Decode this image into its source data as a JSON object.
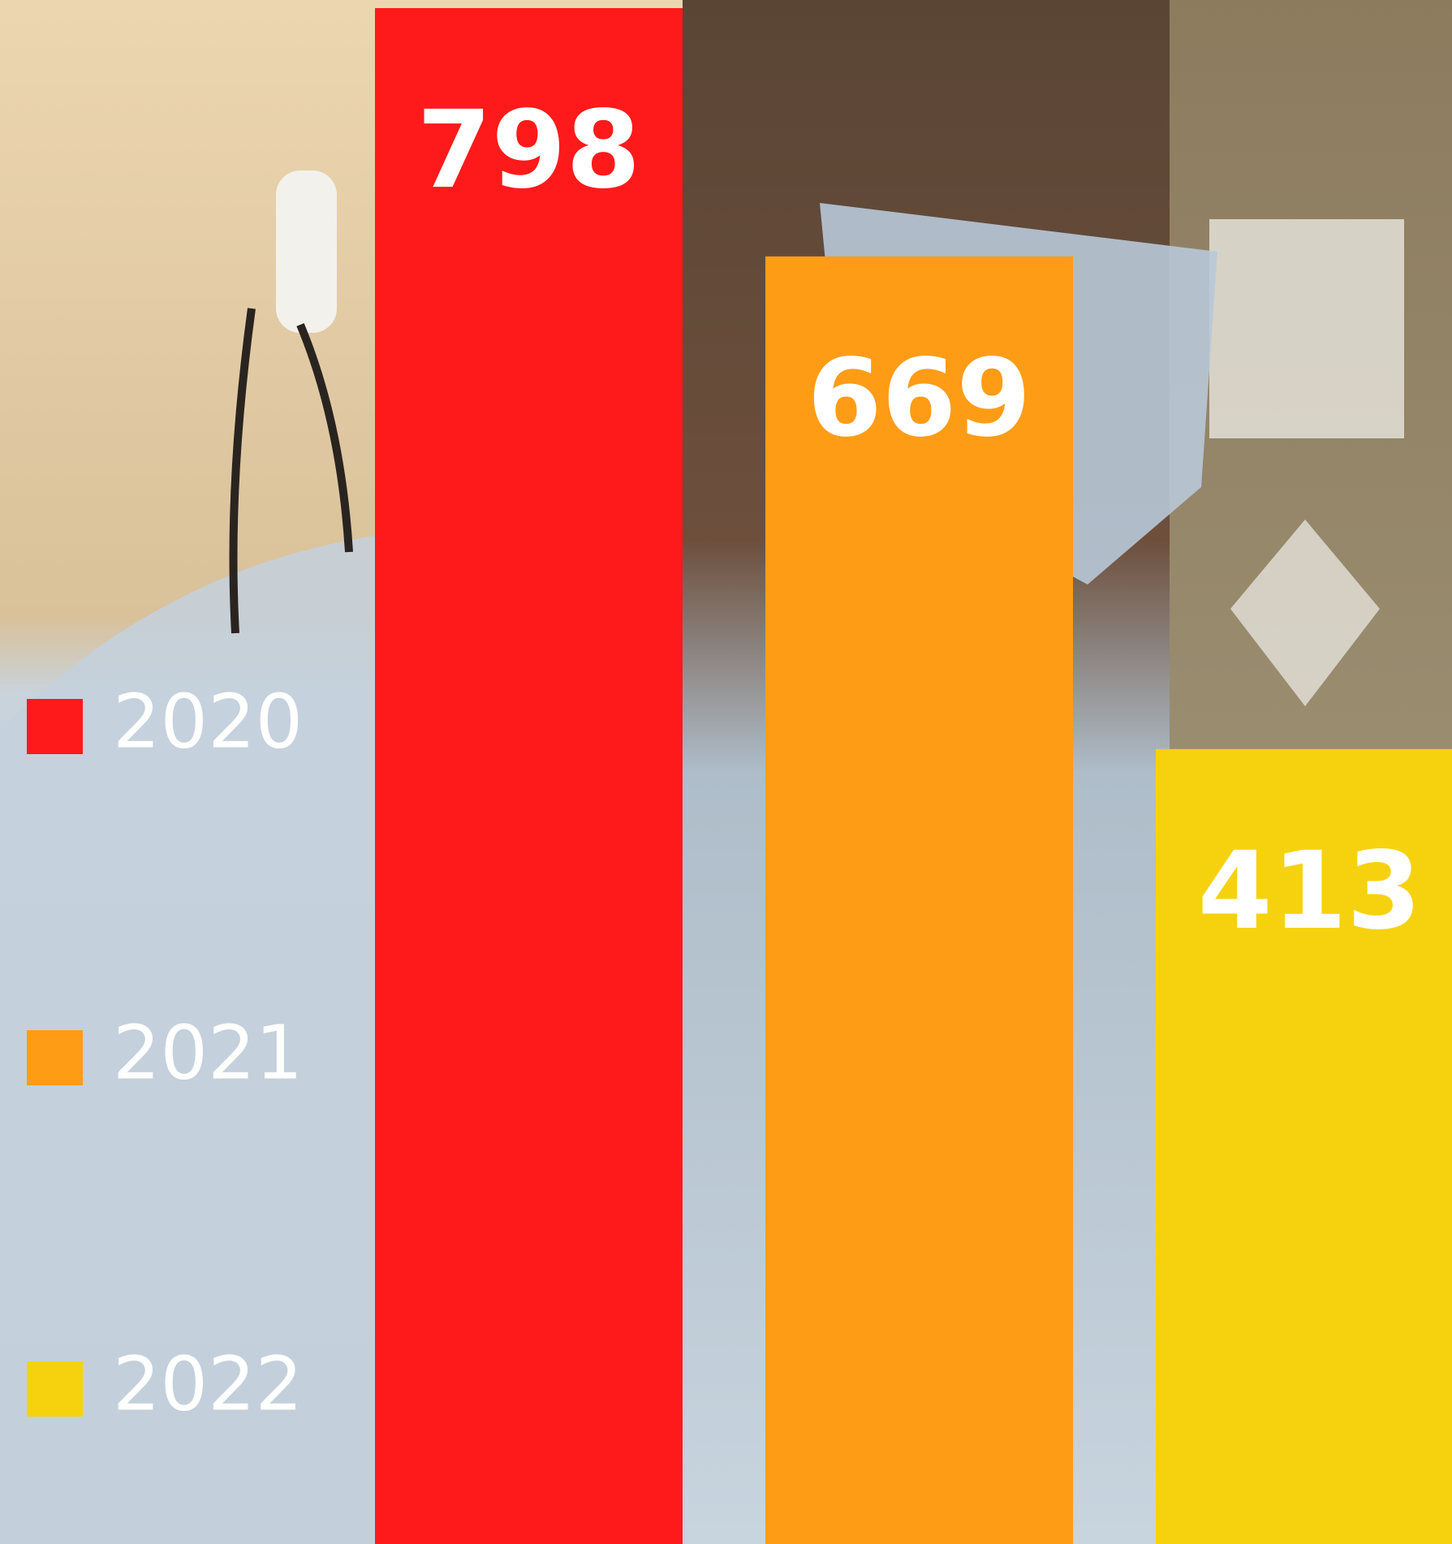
{
  "chart_data": {
    "type": "bar",
    "series": [
      {
        "name": "2020",
        "color": "#fe1a1a",
        "values": [
          798
        ]
      },
      {
        "name": "2021",
        "color": "#fe9c16",
        "values": [
          669
        ]
      },
      {
        "name": "2022",
        "color": "#f6d20e",
        "values": [
          413
        ]
      }
    ]
  }
}
